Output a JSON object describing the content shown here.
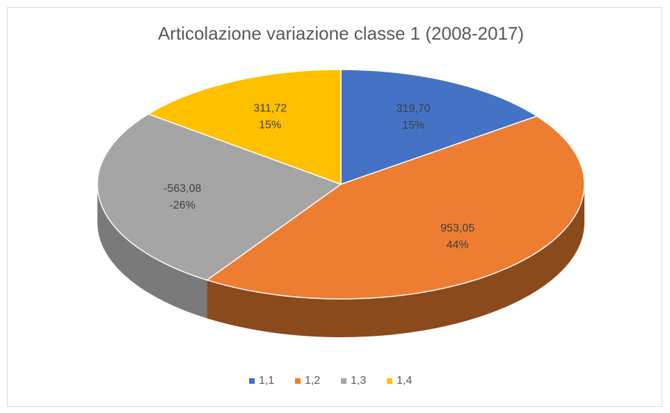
{
  "chart_data": {
    "type": "pie",
    "title": "Articolazione variazione classe 1 (2008-2017)",
    "categories": [
      "1,1",
      "1,2",
      "1,3",
      "1,4"
    ],
    "values": [
      319.7,
      953.05,
      -563.08,
      311.72
    ],
    "value_labels": [
      "319,70",
      "953,05",
      "-563,08",
      "311,72"
    ],
    "percentages": [
      15,
      44,
      -26,
      15
    ],
    "percentage_labels": [
      "15%",
      "44%",
      "-26%",
      "15%"
    ],
    "colors": [
      "#4472c4",
      "#ed7d31",
      "#a5a5a5",
      "#ffc000"
    ],
    "side_colors": [
      "#2f5597",
      "#8a4a1c",
      "#7a7a7a",
      "#b38600"
    ],
    "legend": "bottom"
  }
}
